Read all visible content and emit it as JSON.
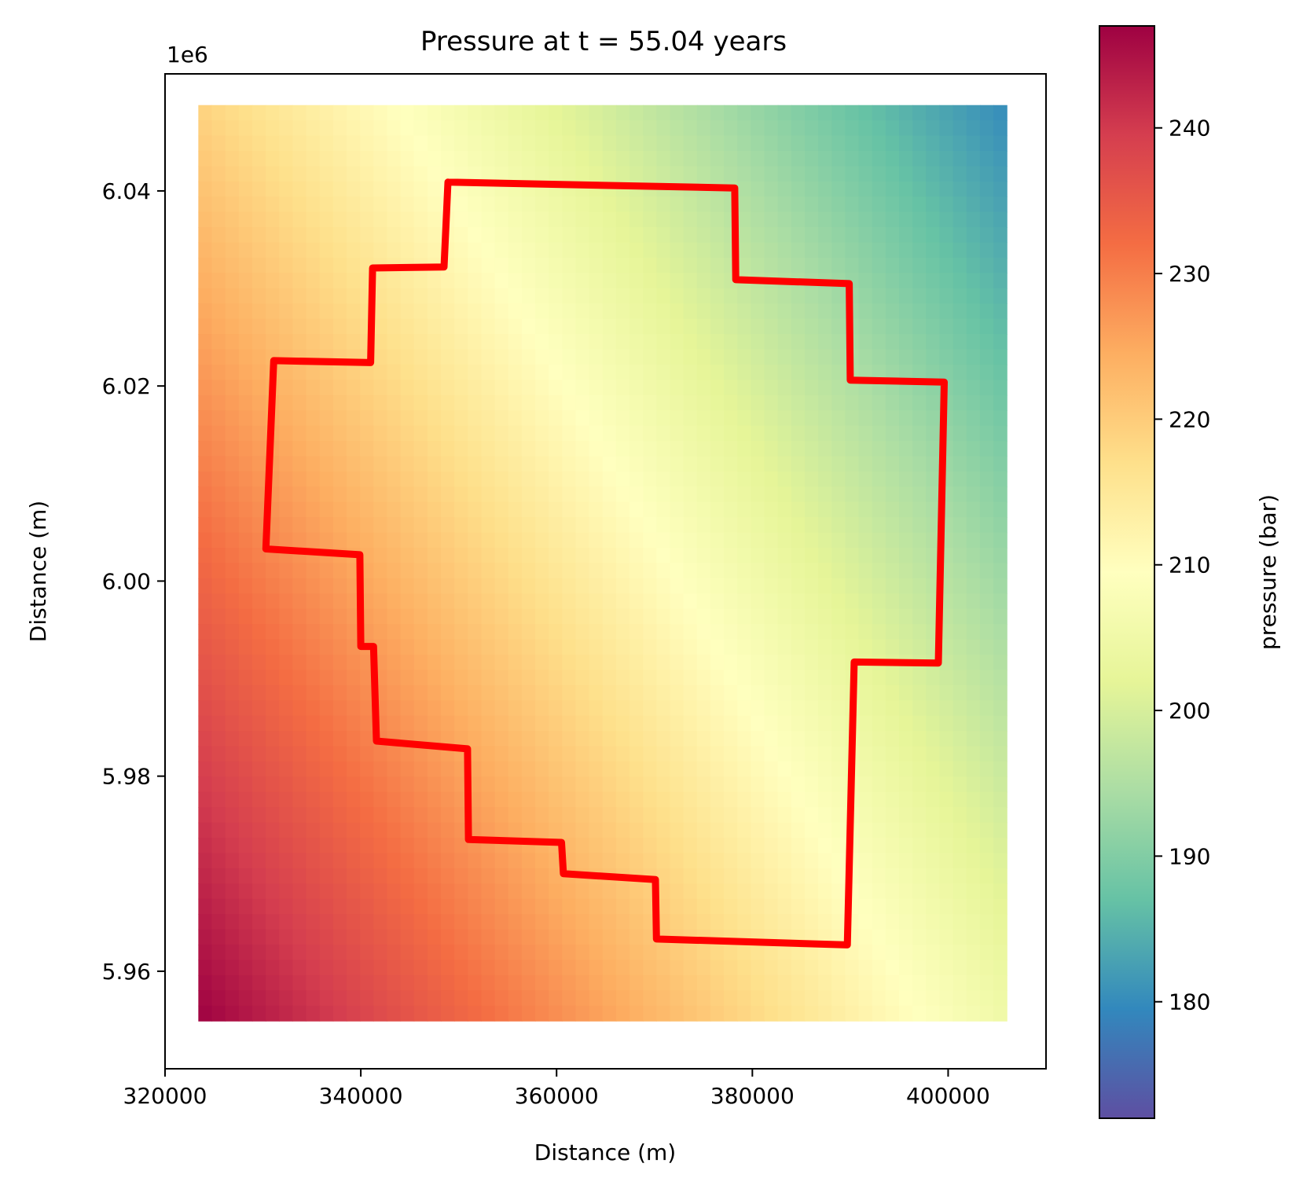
{
  "chart_data": {
    "type": "heatmap",
    "title": "Pressure at t = 55.04 years",
    "xlabel": "Distance (m)",
    "ylabel": "Distance (m)",
    "y_offset_label": "1e6",
    "colorbar_label": "pressure (bar)",
    "colormap": "Spectral",
    "xlim": [
      320000,
      410000
    ],
    "ylim": [
      5950000,
      6052000
    ],
    "x_ticks": [
      320000,
      340000,
      360000,
      380000,
      400000
    ],
    "x_tick_labels": [
      "320000",
      "340000",
      "360000",
      "380000",
      "400000"
    ],
    "y_ticks": [
      5960000,
      5980000,
      6000000,
      6020000,
      6040000
    ],
    "y_tick_labels": [
      "5.96",
      "5.98",
      "6.00",
      "6.02",
      "6.04"
    ],
    "colorbar_range": [
      172,
      247
    ],
    "colorbar_ticks": [
      180,
      190,
      200,
      210,
      220,
      230,
      240
    ],
    "colorbar_tick_labels": [
      "180",
      "190",
      "200",
      "210",
      "220",
      "230",
      "240"
    ],
    "field_extent": {
      "x": [
        323400,
        406000
      ],
      "y": [
        5954900,
        6048800
      ]
    },
    "field_corner_values": {
      "bottom_left": 247,
      "bottom_right": 205,
      "top_left": 219,
      "top_right": 180
    },
    "outline": {
      "color": "#ff0000",
      "points": [
        [
          348900,
          6040900
        ],
        [
          378200,
          6040300
        ],
        [
          378300,
          6030900
        ],
        [
          389900,
          6030500
        ],
        [
          390000,
          6020600
        ],
        [
          399600,
          6020400
        ],
        [
          399000,
          5991600
        ],
        [
          390400,
          5991700
        ],
        [
          389700,
          5962700
        ],
        [
          370200,
          5963300
        ],
        [
          370100,
          5969400
        ],
        [
          360700,
          5970000
        ],
        [
          360500,
          5973200
        ],
        [
          351000,
          5973500
        ],
        [
          350900,
          5982800
        ],
        [
          341600,
          5983600
        ],
        [
          341300,
          5993300
        ],
        [
          340000,
          5993300
        ],
        [
          339900,
          6002700
        ],
        [
          330300,
          6003300
        ],
        [
          331100,
          6022600
        ],
        [
          341000,
          6022400
        ],
        [
          341200,
          6032100
        ],
        [
          348500,
          6032200
        ]
      ]
    }
  }
}
